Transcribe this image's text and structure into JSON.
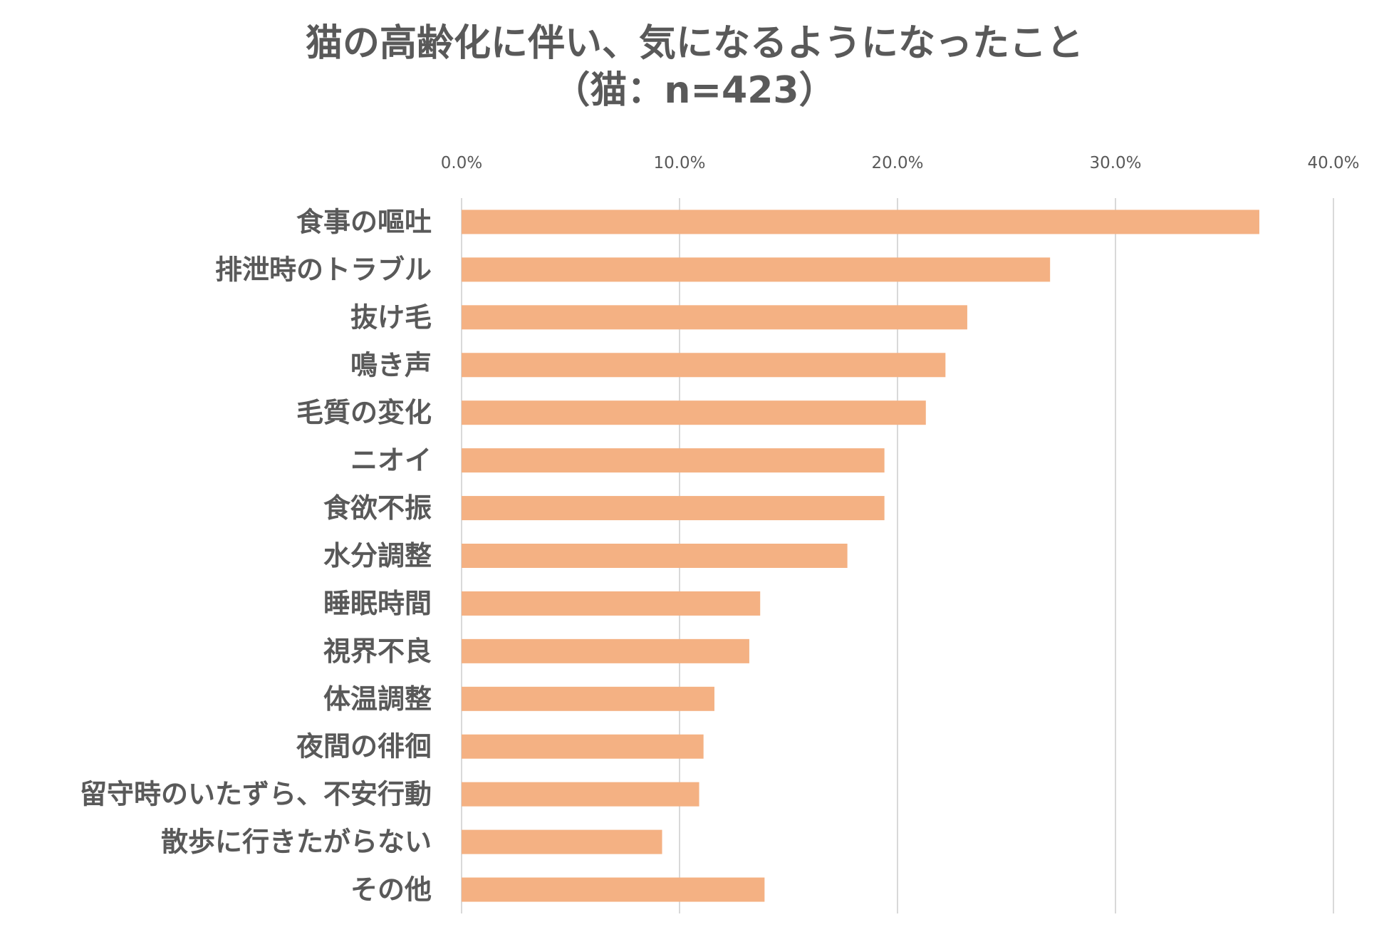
{
  "chart_data": {
    "type": "bar",
    "orientation": "horizontal",
    "title": "猫の高齢化に伴い、気になるようになったこと",
    "subtitle": "（猫：n=423）",
    "xlabel": "",
    "ylabel": "",
    "xlim": [
      0,
      40
    ],
    "ticks": [
      "0.0%",
      "10.0%",
      "20.0%",
      "30.0%",
      "40.0%"
    ],
    "tick_values": [
      0,
      10,
      20,
      30,
      40
    ],
    "grid": true,
    "legend": "none",
    "bar_color": "#F4B183",
    "categories": [
      "食事の嘔吐",
      "排泄時のトラブル",
      "抜け毛",
      "鳴き声",
      "毛質の変化",
      "ニオイ",
      "食欲不振",
      "水分調整",
      "睡眠時間",
      "視界不良",
      "体温調整",
      "夜間の徘徊",
      "留守時のいたずら、不安行動",
      "散歩に行きたがらない",
      "その他"
    ],
    "values": [
      36.6,
      27.0,
      23.2,
      22.2,
      21.3,
      19.4,
      19.4,
      17.7,
      13.7,
      13.2,
      11.6,
      11.1,
      10.9,
      9.2,
      13.9
    ]
  }
}
